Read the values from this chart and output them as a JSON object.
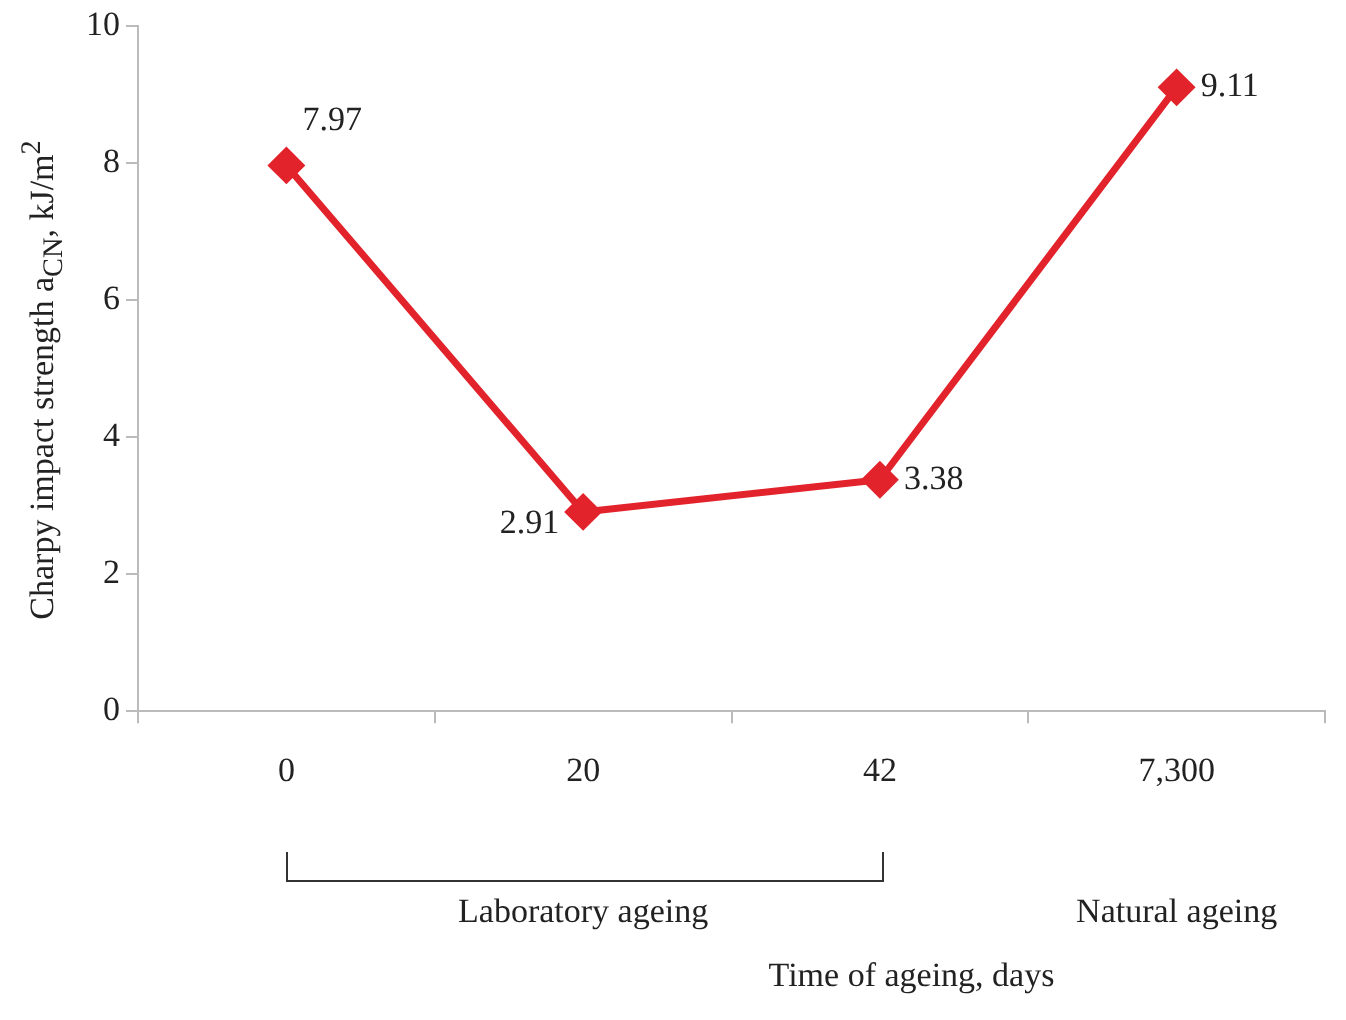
{
  "chart_data": {
    "type": "line",
    "xlabel": "Time of ageing, days",
    "ylabel": "Charpy impact strength a$_{CN}$, kJ/m$^{2}$",
    "categories": [
      "0",
      "20",
      "42",
      "7,300"
    ],
    "series": [
      {
        "color": "#e3232b",
        "values": [
          7.97,
          2.91,
          3.38,
          9.11
        ]
      }
    ],
    "ylim": [
      0,
      10
    ],
    "yticks": [
      0,
      2,
      4,
      6,
      8,
      10
    ],
    "grid": false,
    "legend": false,
    "marker": "diamond",
    "line_style": "solid",
    "data_labels": true,
    "annotations": [
      "Laboratory ageing",
      "Natural ageing"
    ]
  }
}
